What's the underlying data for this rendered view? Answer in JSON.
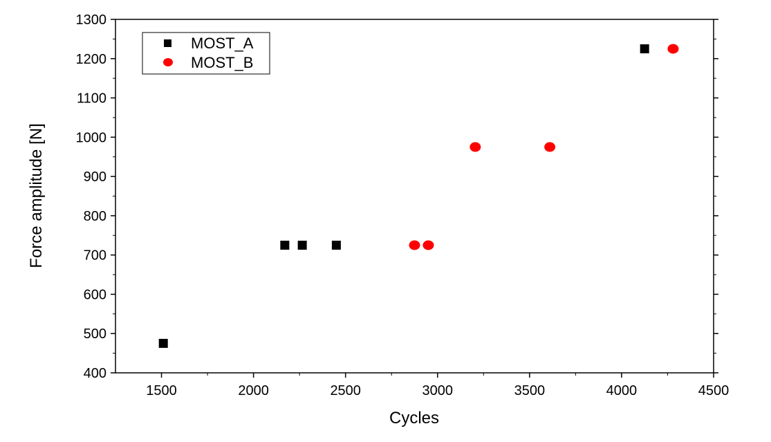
{
  "chart_data": {
    "type": "scatter",
    "title": "",
    "xlabel": "Cycles",
    "ylabel": "Force amplitude [N]",
    "xlim": [
      1250,
      4500
    ],
    "ylim": [
      400,
      1300
    ],
    "xticks": [
      1500,
      2000,
      2500,
      3000,
      3500,
      4000,
      4500
    ],
    "yticks": [
      400,
      500,
      600,
      700,
      800,
      900,
      1000,
      1100,
      1200,
      1300
    ],
    "grid": false,
    "legend_position": "top-left",
    "series": [
      {
        "name": "MOST_A",
        "marker": "square",
        "color": "#000000",
        "points": [
          {
            "x": 1510,
            "y": 475
          },
          {
            "x": 2170,
            "y": 725
          },
          {
            "x": 2265,
            "y": 725
          },
          {
            "x": 2450,
            "y": 725
          },
          {
            "x": 4125,
            "y": 1225
          }
        ]
      },
      {
        "name": "MOST_B",
        "marker": "circle",
        "color": "#ff0000",
        "points": [
          {
            "x": 2875,
            "y": 725
          },
          {
            "x": 2950,
            "y": 725
          },
          {
            "x": 3205,
            "y": 975
          },
          {
            "x": 3610,
            "y": 975
          },
          {
            "x": 4280,
            "y": 1225
          }
        ]
      }
    ]
  }
}
